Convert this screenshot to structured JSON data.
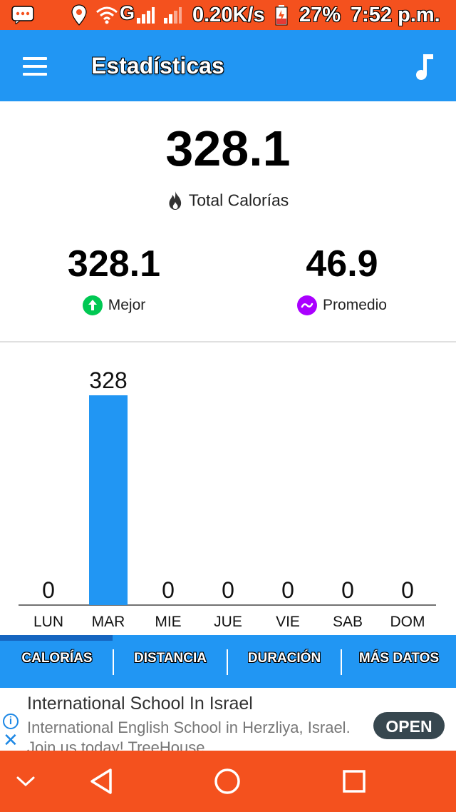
{
  "status_bar": {
    "speed": "0.20K/s",
    "battery": "27%",
    "time": "7:52 p.m.",
    "network": "G",
    "icons": [
      "message-icon",
      "location-icon",
      "wifi-icon",
      "signal-icon",
      "signal-icon",
      "battery-charging-icon"
    ],
    "background_color": "#f4511e"
  },
  "app_bar": {
    "title": "Estadísticas",
    "left_icon": "menu-icon",
    "right_icon": "music-note-icon",
    "background_color": "#2196f3"
  },
  "summary": {
    "total_value": "328.1",
    "total_label": "Total Calorías",
    "total_icon": "fire-icon",
    "best_value": "328.1",
    "best_label": "Mejor",
    "best_icon": "arrow-up-icon",
    "best_color": "#00c853",
    "average_value": "46.9",
    "average_label": "Promedio",
    "average_icon": "tilde-icon",
    "average_color": "#aa00ff"
  },
  "chart_data": {
    "type": "bar",
    "categories": [
      "LUN",
      "MAR",
      "MIE",
      "JUE",
      "VIE",
      "SAB",
      "DOM"
    ],
    "values": [
      0,
      328,
      0,
      0,
      0,
      0,
      0
    ],
    "data_labels": [
      "0",
      "328",
      "0",
      "0",
      "0",
      "0",
      "0"
    ],
    "ylim": [
      0,
      328
    ],
    "bar_color": "#2196f3",
    "grid": false
  },
  "tabs": {
    "items": [
      {
        "label": "CALORÍAS",
        "selected": true
      },
      {
        "label": "DISTANCIA",
        "selected": false
      },
      {
        "label": "DURACIÓN",
        "selected": false
      },
      {
        "label": "MÁS DATOS",
        "selected": false
      }
    ]
  },
  "ad": {
    "title": "International School In Israel",
    "description": "International English School in Herzliya, Israel. Join us today! TreeHouse",
    "button_label": "OPEN"
  },
  "nav_bar": {
    "icons": [
      "chevron-down-icon",
      "back-icon",
      "home-icon",
      "recents-icon"
    ]
  }
}
